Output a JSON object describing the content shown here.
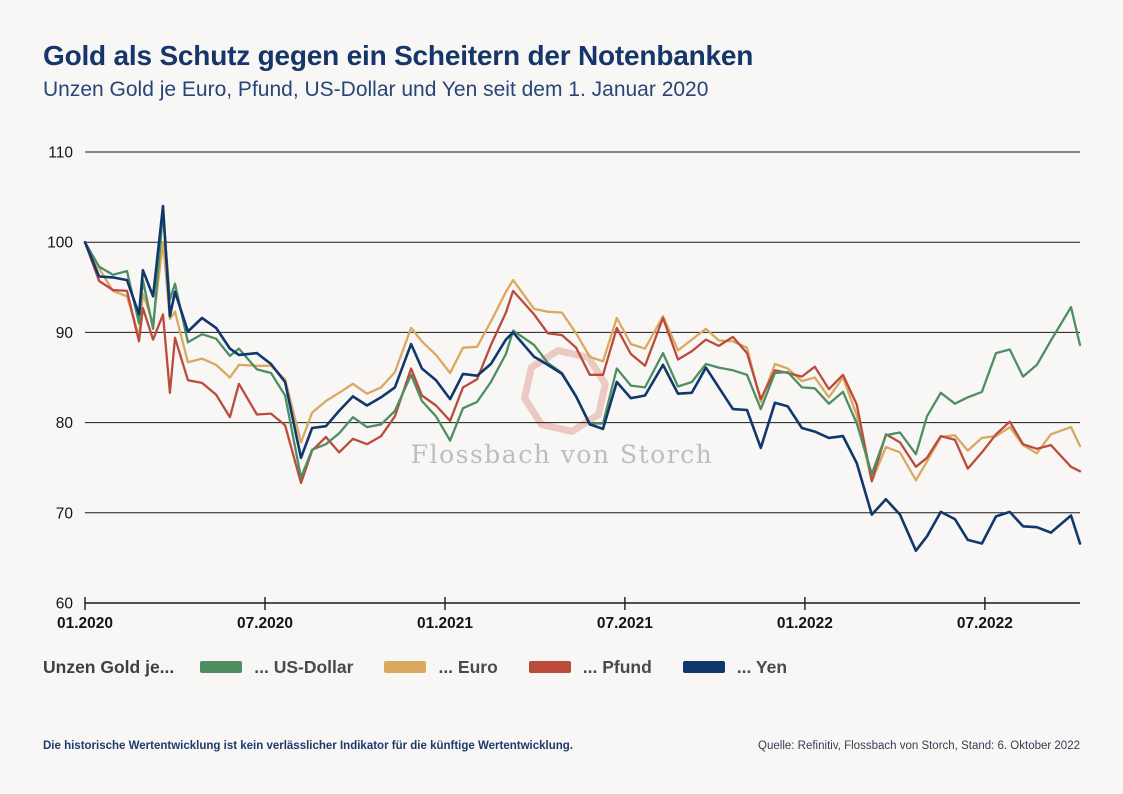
{
  "title": "Gold als Schutz gegen ein Scheitern der Notenbanken",
  "subtitle": "Unzen Gold je Euro, Pfund, US-Dollar und Yen seit dem 1. Januar 2020",
  "watermark": {
    "logo": "fvs-octagon",
    "text": "Flossbach von Storch"
  },
  "legend": {
    "label": "Unzen Gold je...",
    "items": [
      {
        "id": "us-dollar",
        "label": "... US-Dollar",
        "color": "#4e8e62"
      },
      {
        "id": "euro",
        "label": "... Euro",
        "color": "#d9a95f"
      },
      {
        "id": "pfund",
        "label": "... Pfund",
        "color": "#bb4b3c"
      },
      {
        "id": "yen",
        "label": "... Yen",
        "color": "#10386b"
      }
    ]
  },
  "footer": {
    "disclaimer": "Die historische Wertentwicklung ist kein verlässlicher Indikator für die künftige Wertentwicklung.",
    "source": "Quelle: Refinitiv, Flossbach von Storch, Stand: 6. Oktober 2022"
  },
  "colors": {
    "background": "#f8f7f5",
    "title": "#16356a",
    "axis": "#1a1a1a",
    "watermark_logo": "#ecc9c3",
    "watermark_text": "#bdbdbd"
  },
  "chart_data": {
    "type": "line",
    "title": "Gold als Schutz gegen ein Scheitern der Notenbanken",
    "subtitle": "Unzen Gold je Euro, Pfund, US-Dollar und Yen seit dem 1. Januar 2020",
    "ylim": [
      60,
      110
    ],
    "y_ticks": [
      110,
      100,
      90,
      80,
      70,
      60
    ],
    "x_ticks": [
      {
        "pos": 0,
        "label": "01.2020"
      },
      {
        "pos": 6,
        "label": "07.2020"
      },
      {
        "pos": 12,
        "label": "01.2021"
      },
      {
        "pos": 18,
        "label": "07.2021"
      },
      {
        "pos": 24,
        "label": "01.2022"
      },
      {
        "pos": 30,
        "label": "07.2022"
      }
    ],
    "xlim_months": [
      0,
      33.17
    ],
    "grid": "horizontal",
    "legend_position": "bottom",
    "x_months_since_2020_01": [
      0,
      0.47,
      0.93,
      1.4,
      1.8,
      1.93,
      2.27,
      2.6,
      2.83,
      3.0,
      3.43,
      3.9,
      4.37,
      4.83,
      5.13,
      5.73,
      6.2,
      6.67,
      7.2,
      7.57,
      8.03,
      8.47,
      8.93,
      9.4,
      9.87,
      10.33,
      10.87,
      11.23,
      11.7,
      12.17,
      12.6,
      13.07,
      13.53,
      14.03,
      14.27,
      14.97,
      15.43,
      15.9,
      16.37,
      16.83,
      17.27,
      17.73,
      18.2,
      18.67,
      19.27,
      19.77,
      20.23,
      20.7,
      21.13,
      21.6,
      22.07,
      22.53,
      23.0,
      23.43,
      23.9,
      24.33,
      24.8,
      25.27,
      25.73,
      26.23,
      26.7,
      27.17,
      27.7,
      28.07,
      28.53,
      29.0,
      29.43,
      29.9,
      30.37,
      30.83,
      31.27,
      31.73,
      32.2,
      32.87,
      33.17
    ],
    "series": [
      {
        "id": "us-dollar",
        "name": "... US-Dollar",
        "color": "#4e8e62",
        "values": [
          100,
          97.3,
          96.4,
          96.8,
          91.0,
          95.8,
          90.4,
          103.3,
          93.6,
          95.4,
          88.9,
          89.8,
          89.3,
          87.4,
          88.2,
          85.9,
          85.5,
          83.0,
          73.9,
          77.0,
          77.6,
          78.8,
          80.6,
          79.5,
          79.8,
          81.3,
          85.3,
          82.4,
          80.7,
          78.0,
          81.6,
          82.3,
          84.5,
          87.6,
          90.2,
          88.6,
          86.6,
          85.5,
          82.9,
          79.9,
          79.9,
          86.0,
          84.1,
          83.9,
          87.7,
          84.0,
          84.5,
          86.5,
          86.1,
          85.8,
          85.3,
          81.5,
          85.5,
          85.6,
          83.9,
          83.8,
          82.1,
          83.4,
          79.9,
          74.3,
          78.6,
          78.9,
          76.5,
          80.7,
          83.3,
          82.1,
          82.8,
          83.4,
          87.7,
          88.1,
          85.1,
          86.4,
          89.1,
          92.8,
          88.6
        ]
      },
      {
        "id": "euro",
        "name": "... Euro",
        "color": "#d9a95f",
        "values": [
          100,
          97.1,
          94.6,
          94.0,
          89.5,
          94.3,
          91.0,
          100.0,
          91.5,
          92.3,
          86.7,
          87.1,
          86.4,
          85.0,
          86.4,
          86.3,
          86.3,
          84.8,
          77.8,
          81.1,
          82.4,
          83.3,
          84.3,
          83.2,
          83.9,
          85.6,
          90.5,
          89.0,
          87.5,
          85.5,
          88.3,
          88.4,
          91.2,
          94.5,
          95.8,
          92.6,
          92.3,
          92.2,
          89.9,
          87.3,
          86.8,
          91.6,
          88.7,
          88.2,
          91.8,
          88.0,
          89.2,
          90.4,
          89.1,
          89.0,
          88.3,
          82.3,
          86.5,
          86.0,
          84.6,
          85.0,
          82.8,
          85.0,
          80.8,
          73.5,
          77.3,
          76.7,
          73.6,
          75.7,
          78.4,
          78.6,
          76.9,
          78.3,
          78.5,
          79.5,
          77.5,
          76.6,
          78.7,
          79.5,
          77.4
        ]
      },
      {
        "id": "pfund",
        "name": "... Pfund",
        "color": "#bb4b3c",
        "values": [
          100,
          95.7,
          94.7,
          94.6,
          89.0,
          92.7,
          89.2,
          92.0,
          83.3,
          89.4,
          84.7,
          84.4,
          83.1,
          80.6,
          84.3,
          80.9,
          81.0,
          79.7,
          73.3,
          76.9,
          78.4,
          76.7,
          78.2,
          77.6,
          78.5,
          80.7,
          86.0,
          83.0,
          81.9,
          80.2,
          83.9,
          84.8,
          88.6,
          92.2,
          94.6,
          92.0,
          89.9,
          89.7,
          88.3,
          85.3,
          85.3,
          90.5,
          87.6,
          86.3,
          91.6,
          87.0,
          87.9,
          89.2,
          88.5,
          89.5,
          87.7,
          82.6,
          85.8,
          85.5,
          85.1,
          86.2,
          83.7,
          85.3,
          82.0,
          73.5,
          78.7,
          77.8,
          75.1,
          76.1,
          78.5,
          78.1,
          74.9,
          76.7,
          78.7,
          80.1,
          77.6,
          77.1,
          77.5,
          75.1,
          74.6
        ]
      },
      {
        "id": "yen",
        "name": "... Yen",
        "color": "#10386b",
        "values": [
          100,
          96.2,
          96.1,
          95.8,
          92.0,
          96.9,
          94.0,
          104.0,
          91.8,
          94.5,
          90.1,
          91.6,
          90.5,
          88.2,
          87.5,
          87.7,
          86.5,
          84.5,
          76.1,
          79.4,
          79.6,
          81.3,
          82.9,
          81.9,
          82.8,
          83.9,
          88.7,
          86.0,
          84.7,
          82.6,
          85.4,
          85.2,
          86.5,
          89.2,
          90.0,
          87.3,
          86.4,
          85.4,
          82.9,
          79.8,
          79.3,
          84.5,
          82.7,
          83.0,
          86.4,
          83.2,
          83.3,
          86.1,
          83.9,
          81.5,
          81.4,
          77.2,
          82.2,
          81.8,
          79.4,
          79.0,
          78.3,
          78.5,
          75.5,
          69.8,
          71.5,
          69.8,
          65.8,
          67.4,
          70.1,
          69.3,
          67.0,
          66.6,
          69.6,
          70.1,
          68.5,
          68.4,
          67.8,
          69.7,
          66.6
        ]
      }
    ]
  }
}
